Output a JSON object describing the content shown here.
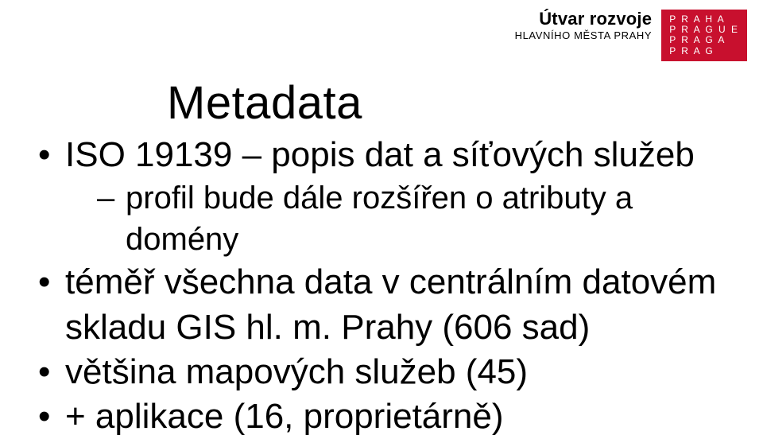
{
  "header": {
    "org_line1": "Útvar rozvoje",
    "org_line2": "HLAVNÍHO MĚSTA PRAHY",
    "logo_rows": [
      "P R A H A",
      "P R A G U E",
      "P R A G A",
      "P R A G"
    ],
    "logo_bg": "#c8102e",
    "logo_fg": "#ffffff"
  },
  "content": {
    "title": "Metadata",
    "bullets": [
      {
        "text": "ISO 19139 – popis dat a síťových služeb",
        "sub": [
          {
            "text": "profil bude dále rozšířen o atributy a domény"
          }
        ]
      },
      {
        "text": "téměř všechna data v centrálním datovém skladu GIS hl. m. Prahy (606 sad)"
      },
      {
        "text": "většina mapových služeb (45)"
      },
      {
        "text": "+ aplikace (16, proprietárně)"
      }
    ]
  },
  "style": {
    "background": "#ffffff",
    "text_color": "#000000",
    "title_fontsize": 58,
    "lvl1_fontsize": 44,
    "lvl2_fontsize": 40
  }
}
